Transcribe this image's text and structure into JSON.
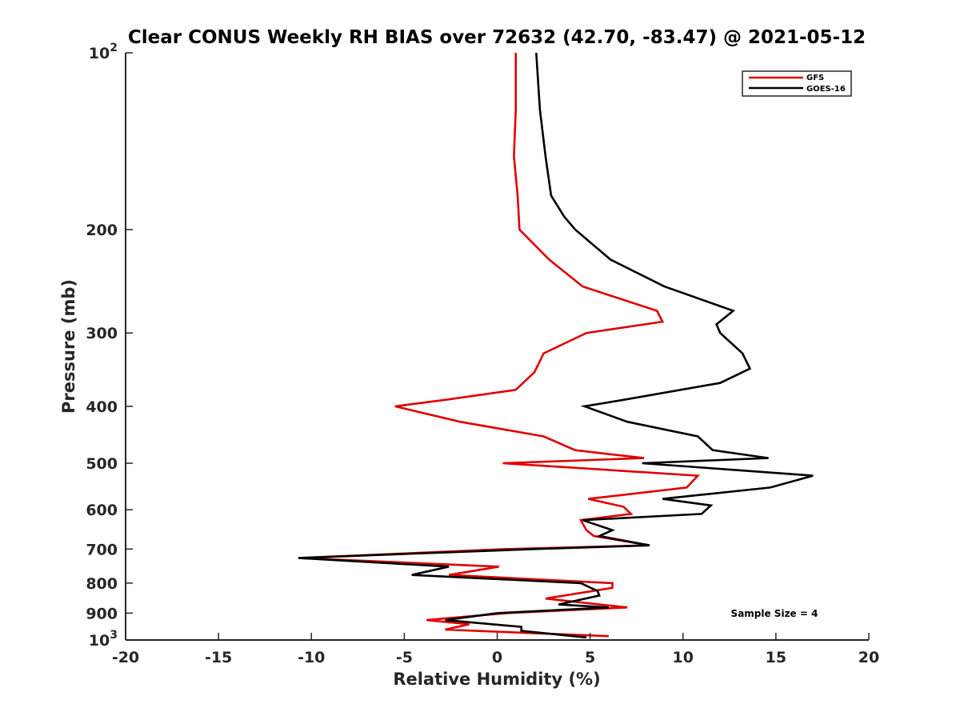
{
  "chart_data": {
    "type": "line",
    "title": "Clear CONUS Weekly RH BIAS over 72632 (42.70, -83.47) @ 2021-05-12",
    "xlabel": "Relative Humidity (%)",
    "ylabel": "Pressure (mb)",
    "xlim": [
      -20,
      20
    ],
    "ylim": [
      100,
      1000
    ],
    "y_scale": "log",
    "y_reversed": true,
    "grid": false,
    "legend_placement": "top-right",
    "x_ticks": [
      "-20",
      "-15",
      "-10",
      "-5",
      "0",
      "5",
      "10",
      "15",
      "20"
    ],
    "y_ticks": [
      {
        "value": 100,
        "base": "10",
        "exp": "2"
      },
      {
        "value": 200,
        "base": "200",
        "exp": ""
      },
      {
        "value": 300,
        "base": "300",
        "exp": ""
      },
      {
        "value": 400,
        "base": "400",
        "exp": ""
      },
      {
        "value": 500,
        "base": "500",
        "exp": ""
      },
      {
        "value": 600,
        "base": "600",
        "exp": ""
      },
      {
        "value": 700,
        "base": "700",
        "exp": ""
      },
      {
        "value": 800,
        "base": "800",
        "exp": ""
      },
      {
        "value": 900,
        "base": "900",
        "exp": ""
      },
      {
        "value": 1000,
        "base": "10",
        "exp": "3"
      }
    ],
    "annotation": "Sample Size = 4",
    "series": [
      {
        "name": "GFS",
        "color": "#e00000",
        "points": [
          [
            1.0,
            100
          ],
          [
            1.0,
            125
          ],
          [
            0.9,
            150
          ],
          [
            1.1,
            175
          ],
          [
            1.2,
            200
          ],
          [
            2.8,
            225
          ],
          [
            4.6,
            250
          ],
          [
            8.6,
            275
          ],
          [
            8.9,
            287
          ],
          [
            4.8,
            300
          ],
          [
            2.5,
            325
          ],
          [
            2.0,
            350
          ],
          [
            1.0,
            375
          ],
          [
            -2.8,
            390
          ],
          [
            -5.5,
            400
          ],
          [
            -2.0,
            425
          ],
          [
            2.5,
            450
          ],
          [
            4.2,
            475
          ],
          [
            7.9,
            490
          ],
          [
            0.3,
            500
          ],
          [
            10.8,
            525
          ],
          [
            10.2,
            550
          ],
          [
            4.9,
            575
          ],
          [
            6.8,
            593
          ],
          [
            7.2,
            610
          ],
          [
            4.5,
            625
          ],
          [
            4.8,
            650
          ],
          [
            5.2,
            665
          ],
          [
            8.2,
            690
          ],
          [
            0.5,
            700
          ],
          [
            -10.7,
            725
          ],
          [
            0.1,
            750
          ],
          [
            -2.6,
            775
          ],
          [
            6.2,
            800
          ],
          [
            6.2,
            815
          ],
          [
            2.6,
            850
          ],
          [
            7.0,
            880
          ],
          [
            0.5,
            900
          ],
          [
            -3.8,
            925
          ],
          [
            -1.5,
            940
          ],
          [
            -2.8,
            960
          ],
          [
            6.0,
            985
          ]
        ]
      },
      {
        "name": "GOES-16",
        "color": "#000000",
        "points": [
          [
            2.1,
            100
          ],
          [
            2.3,
            125
          ],
          [
            2.6,
            150
          ],
          [
            2.9,
            175
          ],
          [
            3.6,
            190
          ],
          [
            4.2,
            200
          ],
          [
            6.1,
            225
          ],
          [
            9.0,
            250
          ],
          [
            12.7,
            275
          ],
          [
            11.8,
            290
          ],
          [
            12.0,
            300
          ],
          [
            13.2,
            325
          ],
          [
            13.6,
            345
          ],
          [
            12.0,
            365
          ],
          [
            6.8,
            390
          ],
          [
            4.7,
            400
          ],
          [
            7.0,
            425
          ],
          [
            10.8,
            450
          ],
          [
            11.6,
            475
          ],
          [
            14.6,
            490
          ],
          [
            7.8,
            500
          ],
          [
            17.0,
            525
          ],
          [
            14.7,
            550
          ],
          [
            8.9,
            575
          ],
          [
            11.5,
            590
          ],
          [
            11.0,
            610
          ],
          [
            4.6,
            625
          ],
          [
            6.2,
            650
          ],
          [
            5.5,
            665
          ],
          [
            8.2,
            690
          ],
          [
            2.0,
            700
          ],
          [
            -10.7,
            725
          ],
          [
            -2.6,
            750
          ],
          [
            -4.6,
            775
          ],
          [
            4.5,
            800
          ],
          [
            5.4,
            825
          ],
          [
            5.5,
            840
          ],
          [
            3.3,
            870
          ],
          [
            6.0,
            880
          ],
          [
            0.0,
            900
          ],
          [
            -2.8,
            925
          ],
          [
            1.3,
            950
          ],
          [
            1.3,
            965
          ],
          [
            4.8,
            990
          ]
        ]
      }
    ]
  }
}
